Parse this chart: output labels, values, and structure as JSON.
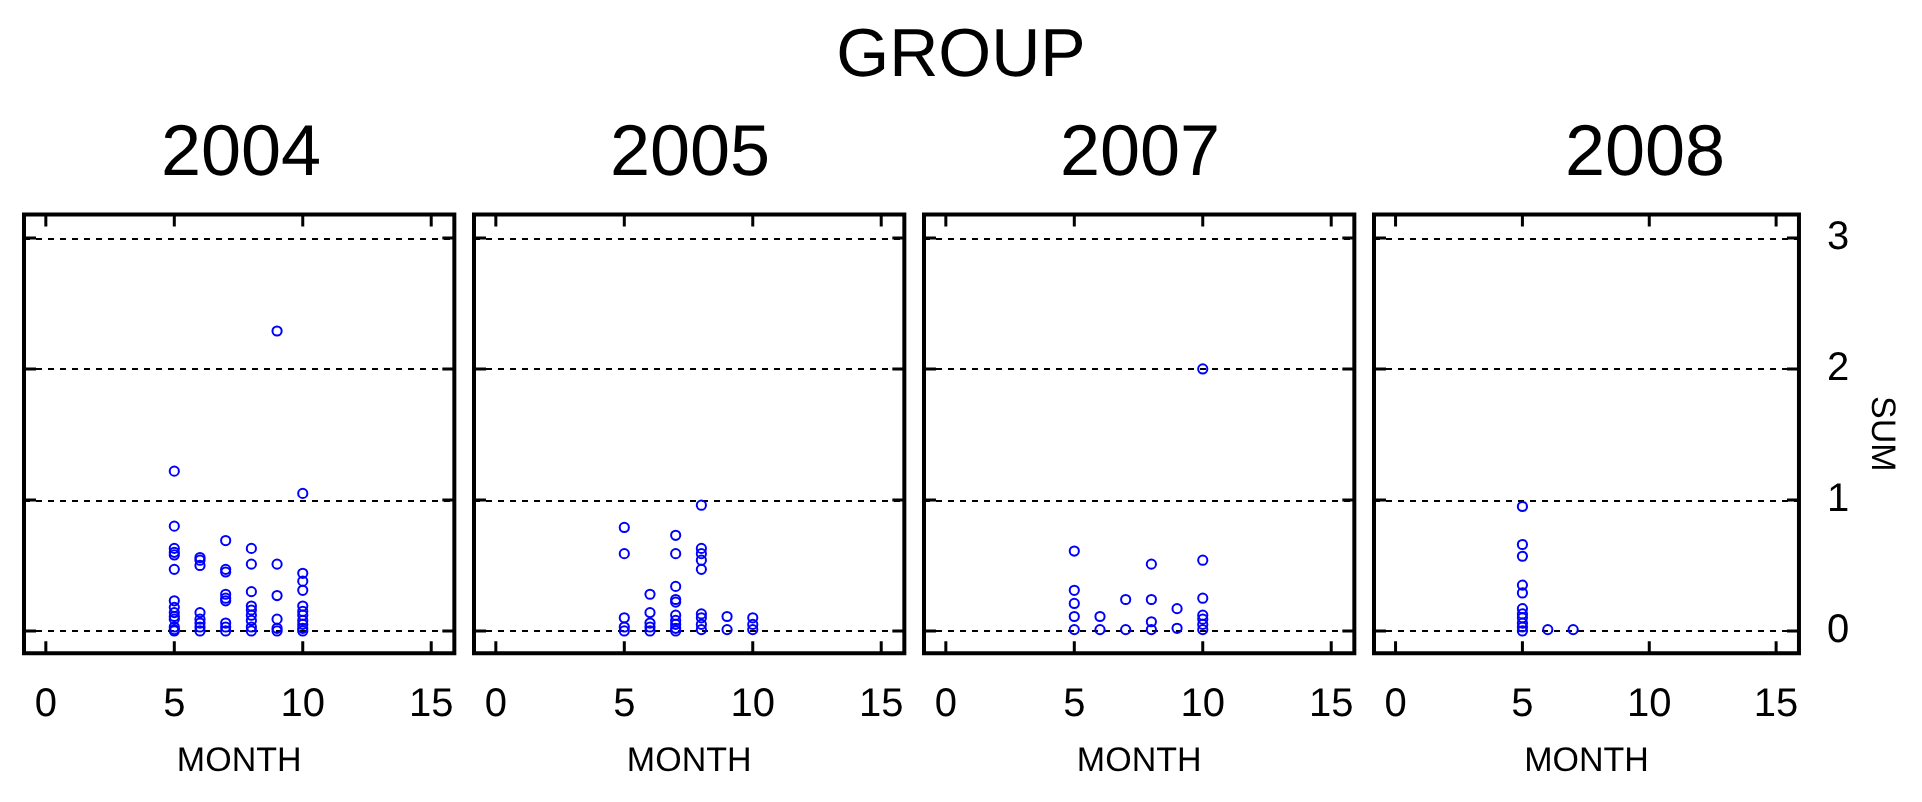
{
  "chart_data": [
    {
      "type": "scatter",
      "title": "2004",
      "xlabel": "MONTH",
      "annotations": [
        "GROUP"
      ],
      "color": "#0000ff",
      "marker": "circle",
      "grid": "y",
      "tick_labels": "x",
      "xlim": [
        -0.85,
        15.9
      ],
      "xticks": [
        0,
        5,
        10,
        15
      ],
      "ylim": [
        -0.17,
        3.18
      ],
      "yticks": [
        0,
        1,
        2,
        3
      ],
      "x": [
        5,
        5,
        5,
        5,
        5,
        5,
        5,
        5,
        5,
        5,
        5,
        5,
        5,
        5,
        6,
        6,
        6,
        6,
        6,
        6,
        6,
        6,
        7,
        7,
        7,
        7,
        7,
        7,
        7,
        7,
        7,
        8,
        8,
        8,
        8,
        8,
        8,
        8,
        8,
        8,
        9,
        9,
        9,
        9,
        9,
        9,
        10,
        10,
        10,
        10,
        10,
        10,
        10,
        10,
        10,
        10,
        10
      ],
      "values": [
        1.22,
        0.8,
        0.63,
        0.6,
        0.58,
        0.47,
        0.23,
        0.18,
        0.14,
        0.11,
        0.09,
        0.03,
        0.01,
        0,
        0.56,
        0.54,
        0.5,
        0.14,
        0.09,
        0.06,
        0.03,
        0,
        0.69,
        0.47,
        0.45,
        0.28,
        0.25,
        0.23,
        0.06,
        0.03,
        0,
        0.63,
        0.51,
        0.3,
        0.19,
        0.16,
        0.12,
        0.08,
        0.03,
        0,
        2.29,
        0.51,
        0.27,
        0.09,
        0.02,
        0,
        1.05,
        0.44,
        0.38,
        0.31,
        0.19,
        0.15,
        0.12,
        0.08,
        0.05,
        0.02,
        0
      ]
    },
    {
      "type": "scatter",
      "title": "2005",
      "xlabel": "MONTH",
      "color": "#0000ff",
      "marker": "circle",
      "grid": "y",
      "tick_labels": "x",
      "xlim": [
        -0.85,
        15.9
      ],
      "xticks": [
        0,
        5,
        10,
        15
      ],
      "ylim": [
        -0.17,
        3.18
      ],
      "yticks": [
        0,
        1,
        2,
        3
      ],
      "x": [
        5,
        5,
        5,
        5,
        5,
        6,
        6,
        6,
        6,
        6,
        7,
        7,
        7,
        7,
        7,
        7,
        7,
        7,
        7,
        7,
        8,
        8,
        8,
        8,
        8,
        8,
        8,
        8,
        8,
        9,
        9,
        10,
        10,
        10
      ],
      "values": [
        0.79,
        0.59,
        0.1,
        0.03,
        0,
        0.28,
        0.14,
        0.06,
        0.03,
        0,
        0.73,
        0.59,
        0.34,
        0.24,
        0.22,
        0.12,
        0.08,
        0.05,
        0.02,
        0,
        0.96,
        0.63,
        0.59,
        0.54,
        0.47,
        0.13,
        0.1,
        0.05,
        0.01,
        0.11,
        0.01,
        0.1,
        0.05,
        0.01
      ]
    },
    {
      "type": "scatter",
      "title": "2007",
      "xlabel": "MONTH",
      "color": "#0000ff",
      "marker": "circle",
      "grid": "y",
      "tick_labels": "x",
      "xlim": [
        -0.85,
        15.9
      ],
      "xticks": [
        0,
        5,
        10,
        15
      ],
      "ylim": [
        -0.17,
        3.18
      ],
      "yticks": [
        0,
        1,
        2,
        3
      ],
      "x": [
        5,
        5,
        5,
        5,
        5,
        6,
        6,
        7,
        7,
        8,
        8,
        8,
        8,
        9,
        9,
        10,
        10,
        10,
        10,
        10,
        10,
        10
      ],
      "values": [
        0.61,
        0.31,
        0.21,
        0.11,
        0.01,
        0.11,
        0.01,
        0.24,
        0.01,
        0.51,
        0.24,
        0.07,
        0.01,
        0.17,
        0.02,
        2.0,
        0.54,
        0.25,
        0.12,
        0.09,
        0.05,
        0.01
      ]
    },
    {
      "type": "scatter",
      "title": "2008",
      "xlabel": "MONTH",
      "ylabel": "SUM",
      "color": "#0000ff",
      "marker": "circle",
      "grid": "y",
      "xlim": [
        -0.85,
        15.9
      ],
      "xticks": [
        0,
        5,
        10,
        15
      ],
      "ylim": [
        -0.17,
        3.18
      ],
      "yticks": [
        0,
        1,
        2,
        3
      ],
      "x": [
        5,
        5,
        5,
        5,
        5,
        5,
        5,
        5,
        5,
        5,
        5,
        6,
        7
      ],
      "values": [
        0.95,
        0.66,
        0.57,
        0.35,
        0.29,
        0.17,
        0.13,
        0.1,
        0.06,
        0.03,
        0,
        0.01,
        0.01
      ]
    }
  ]
}
